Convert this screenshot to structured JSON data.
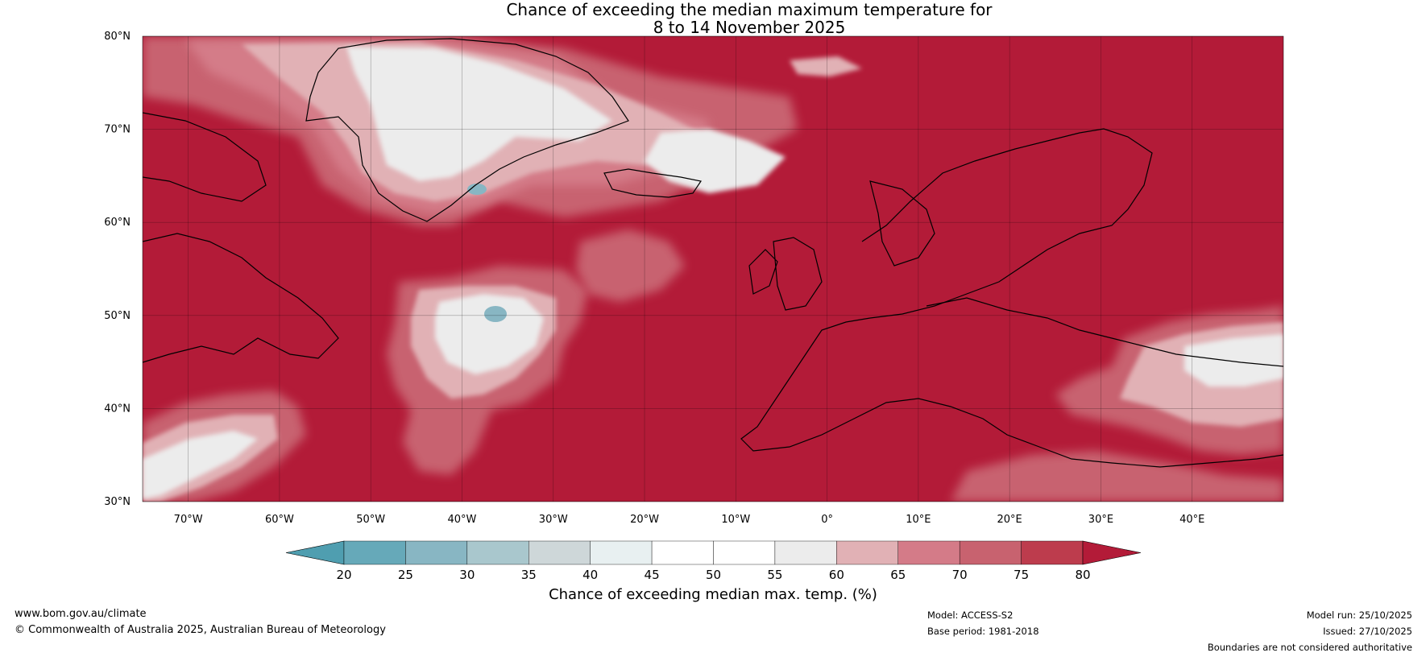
{
  "title": {
    "line1": "Chance of exceeding the median maximum temperature for",
    "line2": "8 to 14 November 2025"
  },
  "map": {
    "latitude_labels": [
      "80°N",
      "70°N",
      "60°N",
      "50°N",
      "40°N",
      "30°N"
    ],
    "longitude_labels": [
      "70°W",
      "60°W",
      "50°W",
      "40°W",
      "30°W",
      "20°W",
      "10°W",
      "0°",
      "10°E",
      "20°E",
      "30°E",
      "40°E"
    ],
    "lat_range": [
      30,
      80
    ],
    "lon_range": [
      -75,
      50
    ],
    "lat_values": [
      80,
      70,
      60,
      50,
      40,
      30
    ],
    "lon_values": [
      -70,
      -60,
      -50,
      -40,
      -30,
      -20,
      -10,
      0,
      10,
      20,
      30,
      40
    ],
    "background_color": "#b31b38"
  },
  "colorbar": {
    "ticks": [
      "20",
      "25",
      "30",
      "35",
      "40",
      "45",
      "50",
      "55",
      "60",
      "65",
      "70",
      "75",
      "80"
    ],
    "colors": [
      "#66a9b9",
      "#88b6c3",
      "#a9c7cd",
      "#ced7d9",
      "#e8f0f1",
      "#ffffff",
      "#ffffff",
      "#ececec",
      "#e1b1b5",
      "#d47b88",
      "#c8626f",
      "#bd3c4d"
    ],
    "under_color": "#4f9eb0",
    "over_color": "#b31b38",
    "label": "Chance of exceeding median max. temp. (%)"
  },
  "footer": {
    "website": "www.bom.gov.au/climate",
    "copyright": "© Commonwealth of Australia 2025, Australian Bureau of Meteorology",
    "model": "Model: ACCESS-S2",
    "base_period": "Base period: 1981-2018",
    "model_run": "Model run: 25/10/2025",
    "issued": "Issued: 27/10/2025",
    "disclaimer": "Boundaries are not considered authoritative"
  }
}
